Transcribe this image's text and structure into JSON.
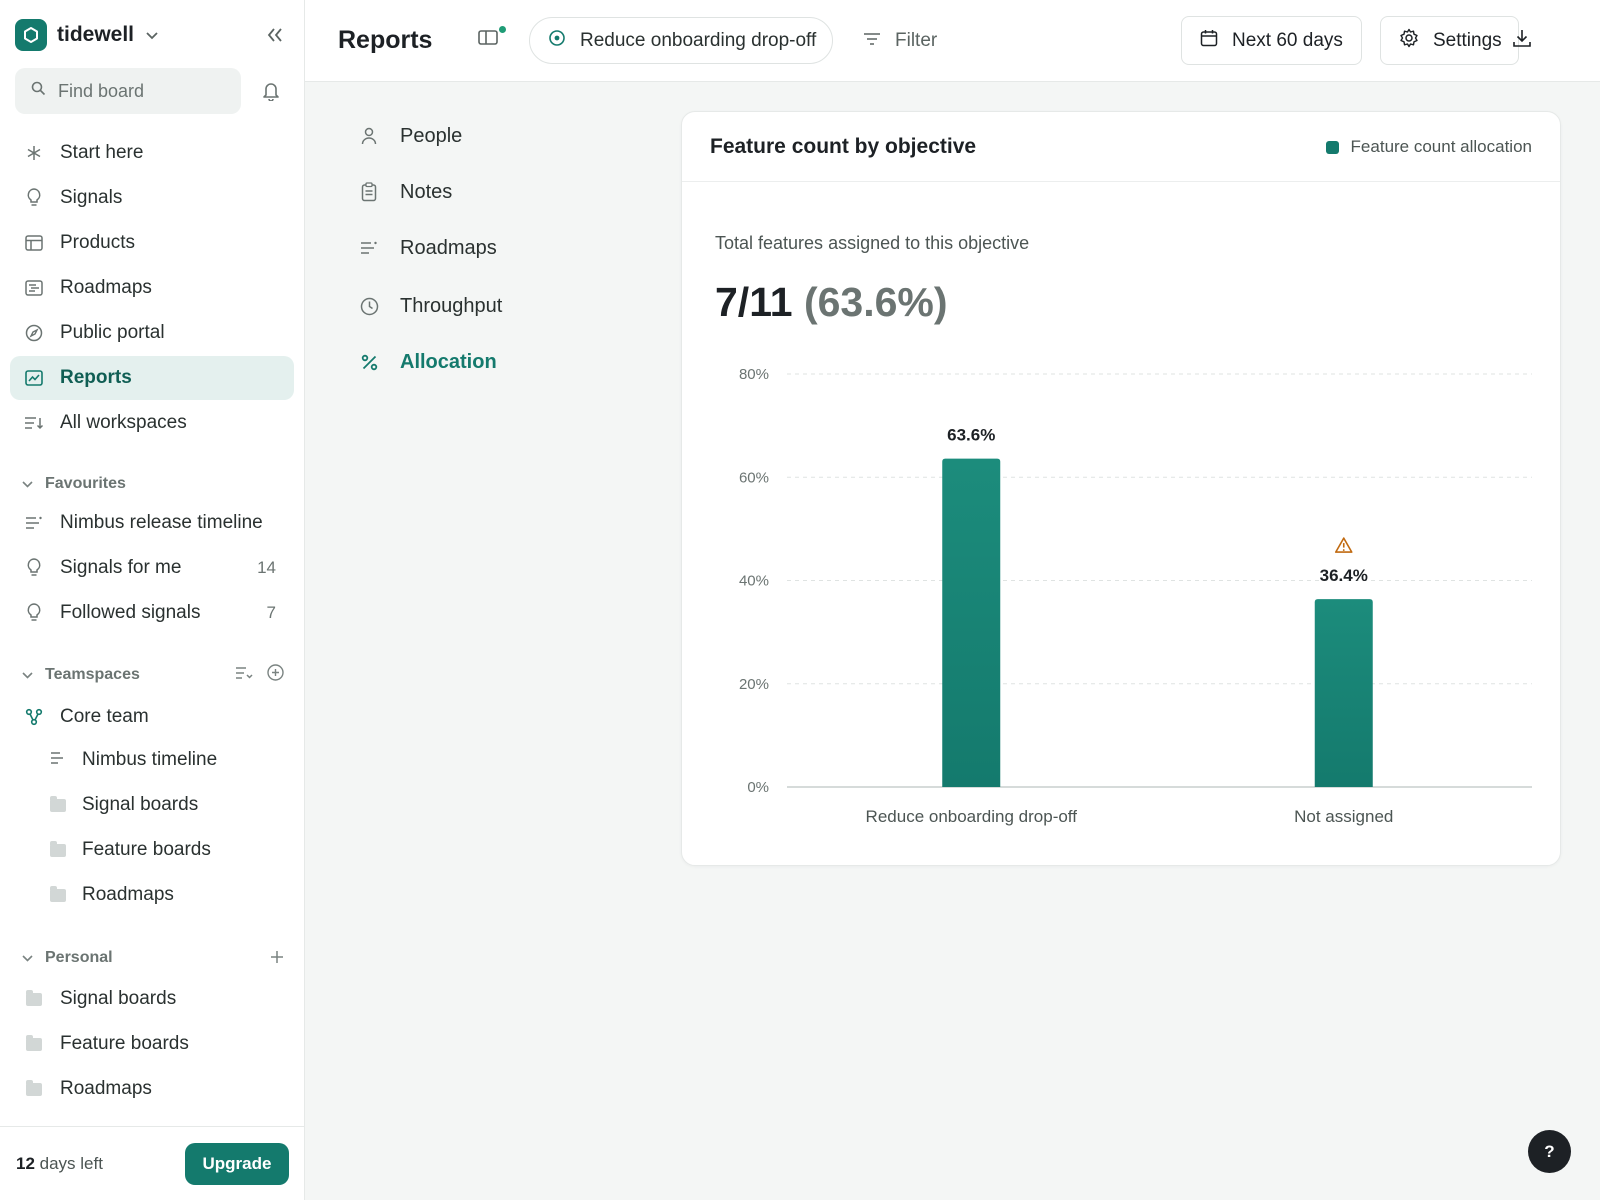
{
  "app": {
    "workspace_name": "tidewell",
    "brand_color": "#147a6d"
  },
  "sidebar": {
    "search_placeholder": "Find board",
    "nav": [
      {
        "label": "Start here",
        "icon": "asterisk-icon"
      },
      {
        "label": "Signals",
        "icon": "lightbulb-icon"
      },
      {
        "label": "Products",
        "icon": "table-icon"
      },
      {
        "label": "Roadmaps",
        "icon": "roadmap-icon"
      },
      {
        "label": "Public portal",
        "icon": "compass-icon"
      },
      {
        "label": "Reports",
        "icon": "chart-icon",
        "active": true
      },
      {
        "label": "All workspaces",
        "icon": "list-sort-icon"
      }
    ],
    "favourites": {
      "title": "Favourites",
      "items": [
        {
          "label": "Nimbus release timeline",
          "icon": "timeline-icon"
        },
        {
          "label": "Signals for me",
          "icon": "lightbulb-icon",
          "count": "14"
        },
        {
          "label": "Followed signals",
          "icon": "lightbulb-icon",
          "count": "7"
        }
      ]
    },
    "teamspaces": {
      "title": "Teamspaces",
      "team": {
        "label": "Core team",
        "icon": "team-icon"
      },
      "items": [
        {
          "label": "Nimbus timeline",
          "icon": "timeline-icon"
        },
        {
          "label": "Signal boards",
          "icon": "folder-icon"
        },
        {
          "label": "Feature boards",
          "icon": "folder-icon"
        },
        {
          "label": "Roadmaps",
          "icon": "folder-icon"
        }
      ]
    },
    "personal": {
      "title": "Personal",
      "items": [
        {
          "label": "Signal boards",
          "icon": "folder-icon"
        },
        {
          "label": "Feature boards",
          "icon": "folder-icon"
        },
        {
          "label": "Roadmaps",
          "icon": "folder-icon"
        }
      ]
    },
    "footer": {
      "days_count": "12",
      "days_text": " days left",
      "upgrade_label": "Upgrade"
    }
  },
  "topbar": {
    "title": "Reports",
    "objective": "Reduce onboarding drop-off",
    "filter_label": "Filter",
    "date_range": "Next 60 days",
    "settings_label": "Settings"
  },
  "report_nav": [
    {
      "label": "People",
      "icon": "person-icon"
    },
    {
      "label": "Notes",
      "icon": "clipboard-icon"
    },
    {
      "label": "Roadmaps",
      "icon": "roadmap-lines-icon"
    },
    {
      "label": "Throughput",
      "icon": "clock-icon"
    },
    {
      "label": "Allocation",
      "icon": "percent-icon",
      "active": true
    }
  ],
  "card": {
    "title": "Feature count by objective",
    "legend": "Feature count allocation",
    "metric_label": "Total features assigned to this objective",
    "metric_value": "7/11",
    "metric_pct": "(63.6%)"
  },
  "chart_data": {
    "type": "bar",
    "categories": [
      "Reduce onboarding drop-off",
      "Not assigned"
    ],
    "series": [
      {
        "name": "Feature count allocation",
        "values": [
          63.6,
          36.4
        ],
        "color": "#147a6d"
      }
    ],
    "data_labels": [
      "63.6%",
      "36.4%"
    ],
    "warning_on": [
      "Not assigned"
    ],
    "yticks": [
      0,
      20,
      40,
      60,
      80
    ],
    "ytick_labels": [
      "0%",
      "20%",
      "40%",
      "60%",
      "80%"
    ],
    "ylim": [
      0,
      80
    ],
    "grid": true,
    "legend_position": "top-right"
  },
  "help": {
    "label": "?"
  }
}
